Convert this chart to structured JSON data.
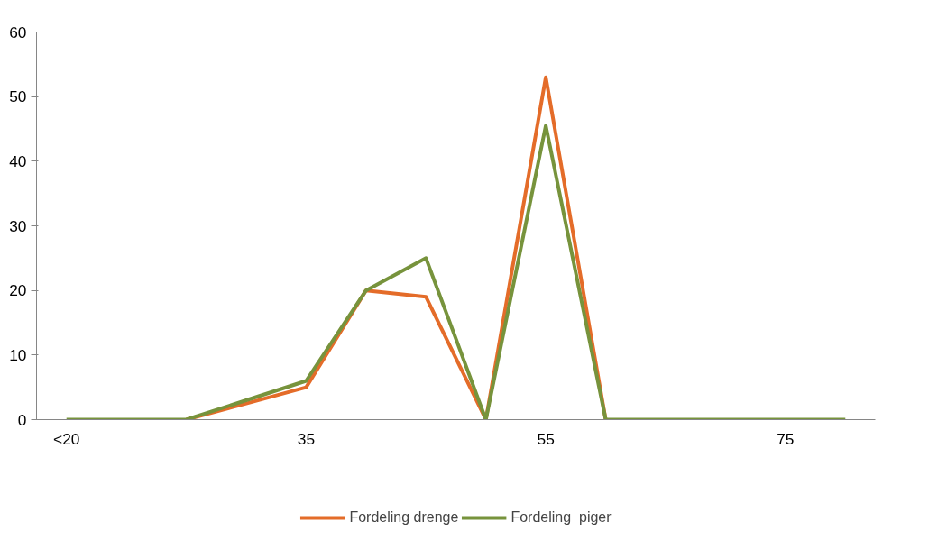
{
  "chart_data": {
    "type": "line",
    "categories": [
      "<20",
      null,
      null,
      null,
      "35",
      null,
      null,
      null,
      "55",
      null,
      null,
      null,
      "75",
      null
    ],
    "series": [
      {
        "name": "Fordeling drenge",
        "color": "#e46c29",
        "values": [
          null,
          null,
          0,
          2.5,
          5,
          20,
          19,
          0,
          53,
          0,
          null,
          null,
          null,
          null
        ]
      },
      {
        "name": "Fordeling  piger",
        "color": "#77933c",
        "values": [
          0,
          0,
          0,
          3,
          6,
          20,
          25,
          0,
          45.5,
          0,
          0,
          0,
          0,
          0
        ]
      }
    ],
    "ylim": [
      0,
      60
    ],
    "yticks": [
      0,
      10,
      20,
      30,
      40,
      50,
      60
    ],
    "grid": false,
    "legend": "bottom",
    "marker": "none",
    "line_style": "solid"
  }
}
